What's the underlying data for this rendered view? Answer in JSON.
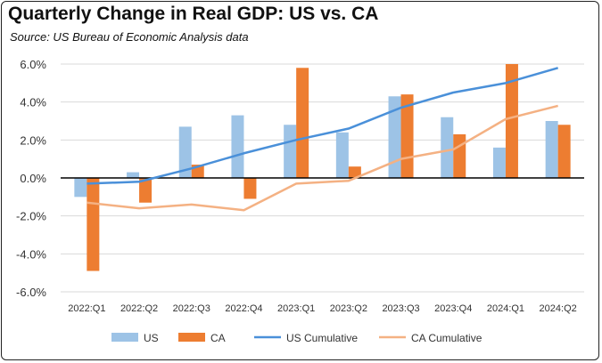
{
  "chart_data": {
    "type": "bar",
    "title": "Quarterly Change in Real GDP:  US vs. CA",
    "subtitle": "Source:  US Bureau of Economic Analysis data",
    "xlabel": "",
    "ylabel": "",
    "ylim": [
      -6,
      6
    ],
    "yticks": [
      6,
      4,
      2,
      0,
      -2,
      -4,
      -6
    ],
    "ytick_labels": [
      "6.0%",
      "4.0%",
      "2.0%",
      "0.0%",
      "-2.0%",
      "-4.0%",
      "-6.0%"
    ],
    "grid": true,
    "legend_position": "bottom",
    "categories": [
      "2022:Q1",
      "2022:Q2",
      "2022:Q3",
      "2022:Q4",
      "2023:Q1",
      "2023:Q2",
      "2023:Q3",
      "2023:Q4",
      "2024:Q1",
      "2024:Q2"
    ],
    "series": [
      {
        "name": "US",
        "kind": "bar",
        "color": "#9DC3E6",
        "values": [
          -1.0,
          0.3,
          2.7,
          3.3,
          2.8,
          2.4,
          4.3,
          3.2,
          1.6,
          3.0
        ]
      },
      {
        "name": "CA",
        "kind": "bar",
        "color": "#ED7D31",
        "values": [
          -4.9,
          -1.3,
          0.7,
          -1.1,
          5.8,
          0.6,
          4.4,
          2.3,
          6.0,
          2.8
        ]
      },
      {
        "name": "US Cumulative",
        "kind": "line",
        "color": "#4A90D9",
        "values": [
          -0.3,
          -0.2,
          0.5,
          1.3,
          2.0,
          2.6,
          3.7,
          4.5,
          5.0,
          5.8
        ]
      },
      {
        "name": "CA Cumulative",
        "kind": "line",
        "color": "#F4B183",
        "values": [
          -1.3,
          -1.6,
          -1.4,
          -1.7,
          -0.3,
          -0.15,
          1.0,
          1.5,
          3.1,
          3.8
        ]
      }
    ]
  }
}
